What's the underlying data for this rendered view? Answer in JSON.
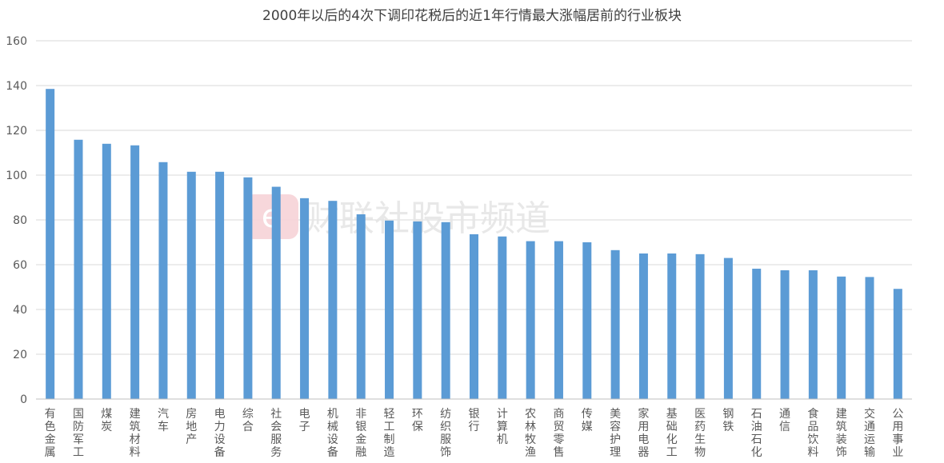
{
  "chart_data": {
    "type": "bar",
    "title": "2000年以后的4次下调印花税后的近1年行情最大涨幅居前的行业板块",
    "xlabel": "",
    "ylabel": "",
    "ylim": [
      0,
      160
    ],
    "yticks": [
      0,
      20,
      40,
      60,
      80,
      100,
      120,
      140,
      160
    ],
    "grid": true,
    "legend": "none",
    "bar_color": "#5b9bd5",
    "categories": [
      "有色金属",
      "国防军工",
      "煤炭",
      "建筑材料",
      "汽车",
      "房地产",
      "电力设备",
      "综合",
      "社会服务",
      "电子",
      "机械设备",
      "非银金融",
      "轻工制造",
      "环保",
      "纺织服饰",
      "银行",
      "计算机",
      "农林牧渔",
      "商贸零售",
      "传媒",
      "美容护理",
      "家用电器",
      "基础化工",
      "医药生物",
      "钢铁",
      "石油石化",
      "通信",
      "食品饮料",
      "建筑装饰",
      "交通运输",
      "公用事业"
    ],
    "values": [
      138.5,
      115.8,
      114,
      113.3,
      105.8,
      101.5,
      101.5,
      99,
      94.8,
      89.7,
      88.5,
      82.5,
      79.7,
      79.3,
      79,
      73.6,
      72.6,
      70.5,
      70.5,
      70,
      66.5,
      65,
      65,
      64.7,
      63,
      58.2,
      57.5,
      57.5,
      54.7,
      54.5,
      49.2
    ]
  },
  "watermark": {
    "text": "财联社股市频道",
    "icon": "cls-logo-icon"
  }
}
